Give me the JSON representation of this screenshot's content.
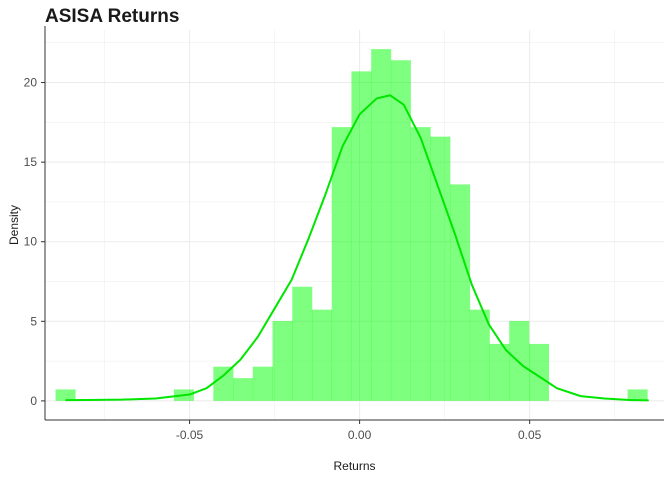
{
  "chart_data": {
    "type": "bar",
    "title": "ASISA Returns",
    "xlabel": "Returns",
    "ylabel": "Density",
    "xlim": [
      -0.0925,
      0.0895
    ],
    "ylim": [
      -1.2,
      23.3
    ],
    "grid": true,
    "x_ticks": [
      -0.05,
      0.0,
      0.05
    ],
    "x_tick_labels": [
      "-0.05",
      "0.00",
      "0.05"
    ],
    "y_ticks": [
      0,
      5,
      10,
      15,
      20
    ],
    "y_tick_labels": [
      "0",
      "5",
      "10",
      "15",
      "20"
    ],
    "colors": {
      "bars": "#00ff00",
      "bar_opacity": 0.5,
      "density_line": "#00e600",
      "axis": "#333333",
      "grid": "#ebebeb"
    },
    "histogram": {
      "bin_width": 0.0058,
      "bins": [
        {
          "x": -0.0865,
          "density": 0.72
        },
        {
          "x": -0.0807,
          "density": 0.0
        },
        {
          "x": -0.0749,
          "density": 0.0
        },
        {
          "x": -0.0691,
          "density": 0.0
        },
        {
          "x": -0.0633,
          "density": 0.0
        },
        {
          "x": -0.0575,
          "density": 0.0
        },
        {
          "x": -0.0517,
          "density": 0.72
        },
        {
          "x": -0.0459,
          "density": 0.0
        },
        {
          "x": -0.0401,
          "density": 2.15
        },
        {
          "x": -0.0343,
          "density": 1.43
        },
        {
          "x": -0.0285,
          "density": 2.15
        },
        {
          "x": -0.0227,
          "density": 5.02
        },
        {
          "x": -0.0169,
          "density": 7.17
        },
        {
          "x": -0.0111,
          "density": 5.73
        },
        {
          "x": -0.0053,
          "density": 17.2
        },
        {
          "x": 0.0005,
          "density": 20.7
        },
        {
          "x": 0.0063,
          "density": 22.1
        },
        {
          "x": 0.0121,
          "density": 21.4
        },
        {
          "x": 0.0179,
          "density": 17.2
        },
        {
          "x": 0.0237,
          "density": 16.6
        },
        {
          "x": 0.0295,
          "density": 13.6
        },
        {
          "x": 0.0353,
          "density": 5.73
        },
        {
          "x": 0.0411,
          "density": 3.58
        },
        {
          "x": 0.0469,
          "density": 5.02
        },
        {
          "x": 0.0527,
          "density": 3.58
        },
        {
          "x": 0.0585,
          "density": 0.0
        },
        {
          "x": 0.0643,
          "density": 0.0
        },
        {
          "x": 0.0701,
          "density": 0.0
        },
        {
          "x": 0.0759,
          "density": 0.0
        },
        {
          "x": 0.0817,
          "density": 0.72
        }
      ]
    },
    "density_curve": {
      "x": [
        -0.0865,
        -0.08,
        -0.07,
        -0.06,
        -0.05,
        -0.045,
        -0.04,
        -0.035,
        -0.03,
        -0.025,
        -0.02,
        -0.015,
        -0.01,
        -0.005,
        0.0,
        0.005,
        0.009,
        0.013,
        0.018,
        0.023,
        0.028,
        0.033,
        0.038,
        0.043,
        0.048,
        0.053,
        0.058,
        0.065,
        0.072,
        0.08,
        0.085
      ],
      "y": [
        0.05,
        0.06,
        0.08,
        0.15,
        0.4,
        0.8,
        1.6,
        2.6,
        4.0,
        5.8,
        7.6,
        10.2,
        13.0,
        16.0,
        18.0,
        19.0,
        19.2,
        18.6,
        16.5,
        13.5,
        10.5,
        7.3,
        4.8,
        3.2,
        2.2,
        1.5,
        0.8,
        0.3,
        0.15,
        0.05,
        0.03
      ]
    }
  }
}
